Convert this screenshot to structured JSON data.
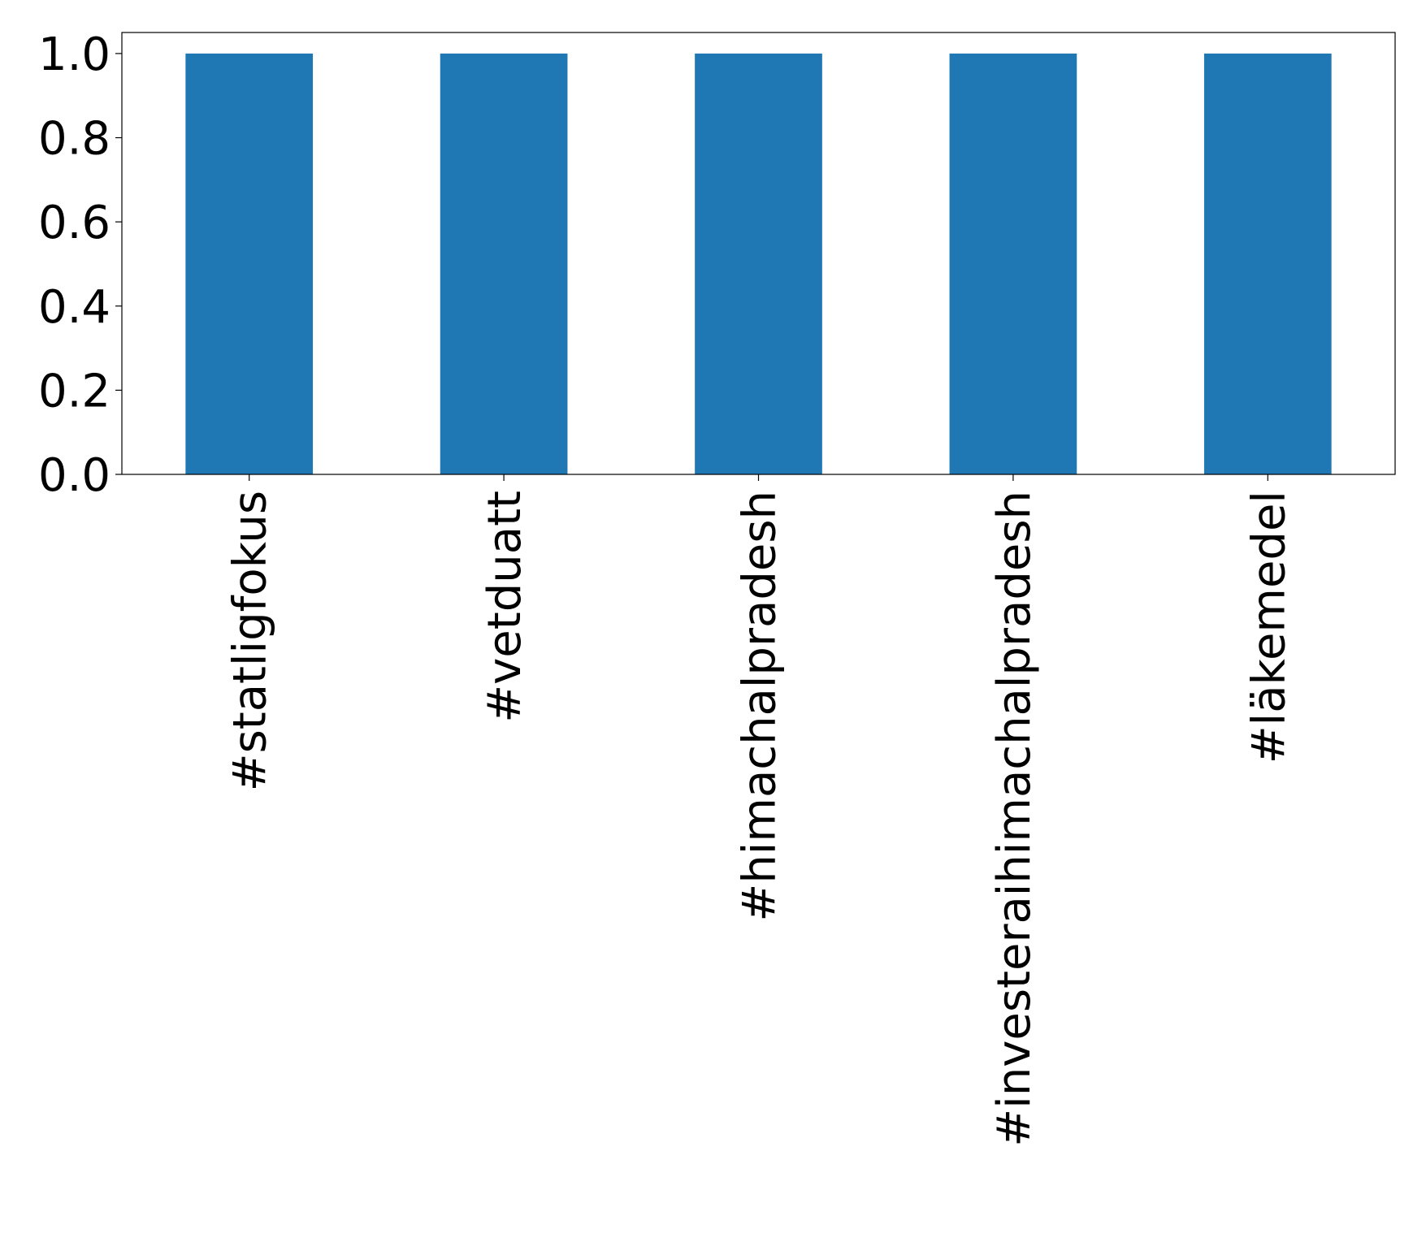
{
  "chart_data": {
    "type": "bar",
    "categories": [
      "#statligfokus",
      "#vetduatt",
      "#himachalpradesh",
      "#investeraihimachalpradesh",
      "#läkemedel"
    ],
    "values": [
      1,
      1,
      1,
      1,
      1
    ],
    "color": "#1f77b4",
    "ylim": [
      0,
      1.05
    ],
    "yticks": [
      {
        "value": 0,
        "label": "0.0"
      },
      0.2,
      0.4,
      0.6,
      0.8,
      {
        "value": 1,
        "label": "1.0"
      }
    ],
    "grid": false
  }
}
